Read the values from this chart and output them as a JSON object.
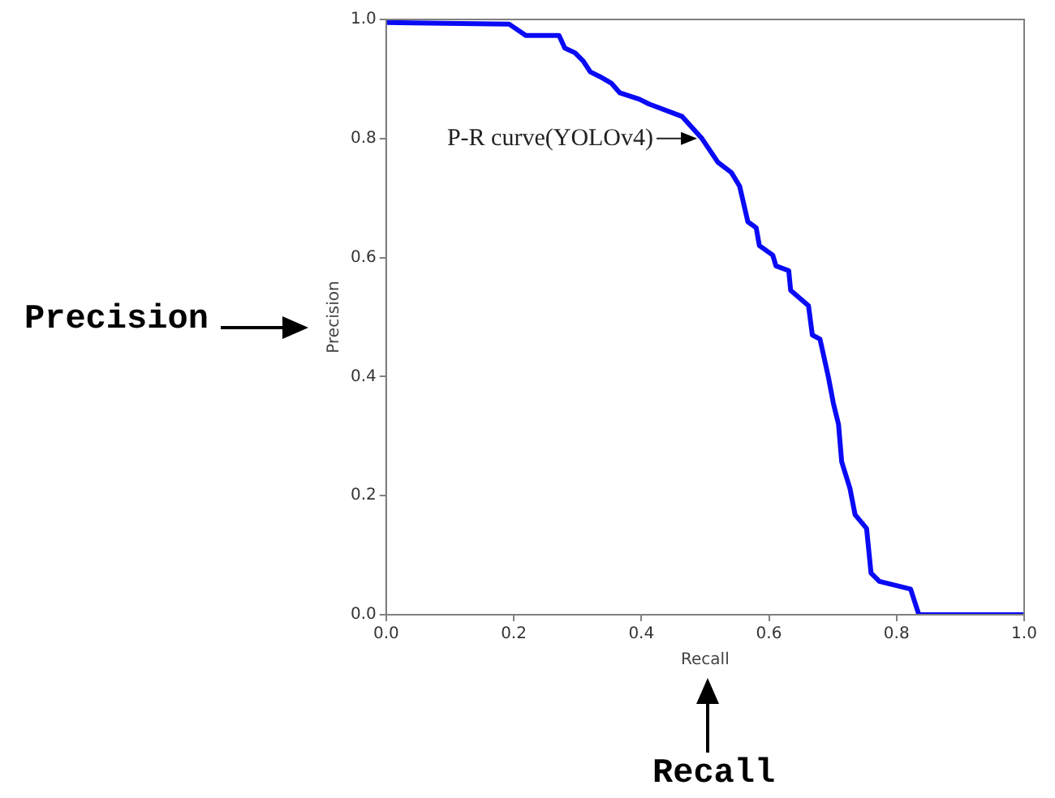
{
  "chart_data": {
    "type": "line",
    "xlabel": "Recall",
    "ylabel": "Precision",
    "x": [
      0,
      0.193,
      0.219,
      0.271,
      0.28,
      0.296,
      0.309,
      0.32,
      0.335,
      0.353,
      0.366,
      0.397,
      0.412,
      0.464,
      0.495,
      0.52,
      0.541,
      0.554,
      0.567,
      0.58,
      0.585,
      0.606,
      0.611,
      0.631,
      0.634,
      0.662,
      0.668,
      0.68,
      0.693,
      0.701,
      0.709,
      0.714,
      0.727,
      0.735,
      0.753,
      0.76,
      0.773,
      0.822,
      0.835,
      1.0
    ],
    "series": [
      {
        "color": "#0a0af5",
        "values": [
          0.995,
          0.992,
          0.973,
          0.973,
          0.952,
          0.944,
          0.93,
          0.912,
          0.904,
          0.893,
          0.877,
          0.866,
          0.858,
          0.837,
          0.8,
          0.76,
          0.743,
          0.72,
          0.66,
          0.65,
          0.62,
          0.604,
          0.586,
          0.578,
          0.545,
          0.519,
          0.47,
          0.463,
          0.4,
          0.355,
          0.32,
          0.257,
          0.212,
          0.168,
          0.145,
          0.07,
          0.056,
          0.043,
          0,
          0
        ]
      }
    ],
    "xlim": [
      0,
      1
    ],
    "ylim": [
      0,
      1
    ],
    "xticks": [
      {
        "value": 0,
        "label": "0.0"
      },
      0.2,
      0.4,
      0.6,
      0.8,
      {
        "value": 1,
        "label": "1.0"
      }
    ],
    "yticks": [
      {
        "value": 0,
        "label": "0.0"
      },
      0.2,
      0.4,
      0.6,
      0.8,
      {
        "value": 1,
        "label": "1.0"
      }
    ],
    "grid": false,
    "legend": false,
    "marker": "none",
    "line_style": "solid",
    "annotations": [
      {
        "text": "P-R curve(YOLOv4)",
        "x": 0.49,
        "y": 0.8
      },
      "Precision",
      "Recall"
    ]
  }
}
